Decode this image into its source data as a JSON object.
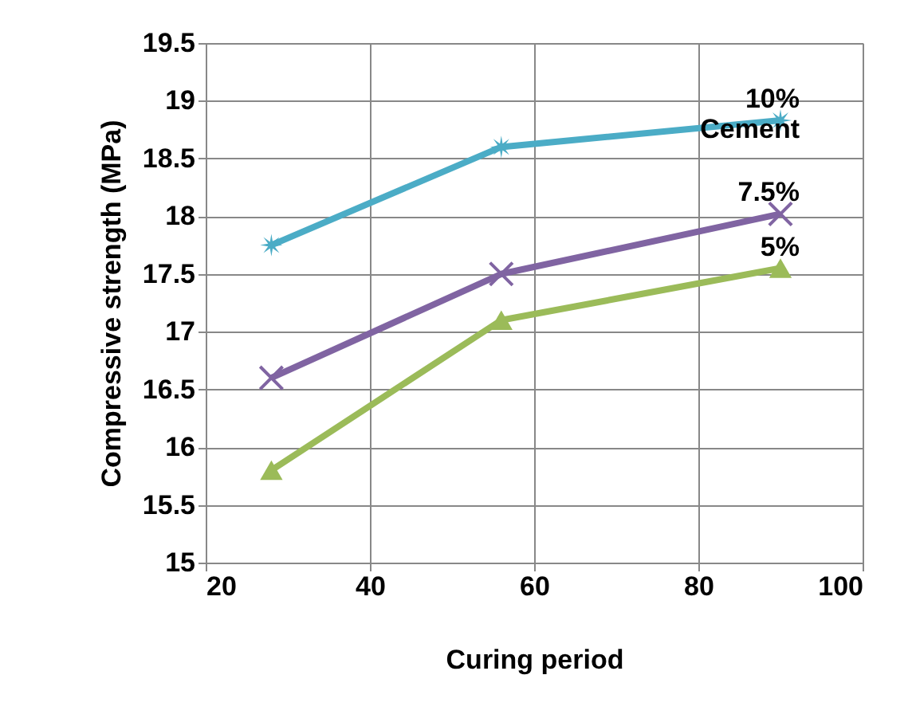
{
  "chart_data": {
    "type": "line",
    "xlabel": "Curing period",
    "ylabel": "Compressive strength (MPa)",
    "x": [
      28,
      56,
      90
    ],
    "series": [
      {
        "name": "10% Cement",
        "color": "#4bacc6",
        "marker": "star",
        "values": [
          17.75,
          18.6,
          18.83
        ]
      },
      {
        "name": "7.5%",
        "color": "#8064a2",
        "marker": "cross",
        "values": [
          16.6,
          17.5,
          18.02
        ]
      },
      {
        "name": "5%",
        "color": "#9bbb59",
        "marker": "triangle",
        "values": [
          15.8,
          17.1,
          17.55
        ]
      }
    ],
    "xlim": [
      20,
      100
    ],
    "xticks": [
      20,
      40,
      60,
      80,
      100
    ],
    "ylim": [
      15,
      19.5
    ],
    "yticks": [
      15,
      15.5,
      16,
      16.5,
      17,
      17.5,
      18,
      18.5,
      19,
      19.5
    ],
    "grid": true,
    "line_style": "solid"
  }
}
